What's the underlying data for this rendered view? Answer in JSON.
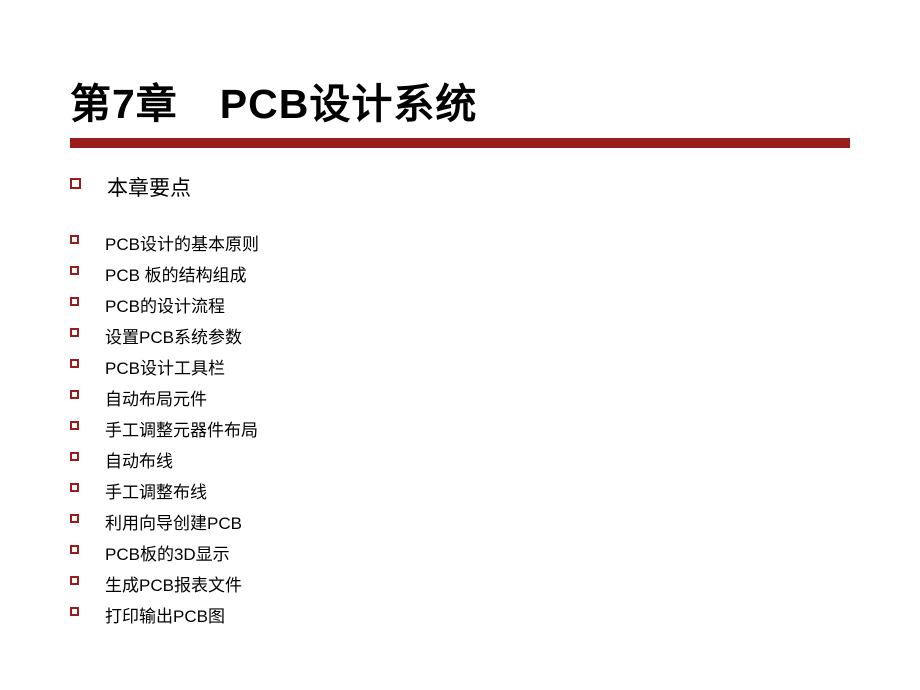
{
  "title": "第7章　PCB设计系统",
  "accent_color": "#9a1d1d",
  "background_color": "#ffffff",
  "text_color": "#000000",
  "title_fontsize": 41,
  "main_heading": "本章要点",
  "main_heading_fontsize": 21,
  "list_fontsize": 17,
  "items": [
    "PCB设计的基本原则",
    "PCB 板的结构组成",
    "PCB的设计流程",
    "设置PCB系统参数",
    "PCB设计工具栏",
    "自动布局元件",
    "手工调整元器件布局",
    "自动布线",
    "手工调整布线",
    "利用向导创建PCB",
    "PCB板的3D显示",
    "生成PCB报表文件",
    "打印输出PCB图"
  ]
}
